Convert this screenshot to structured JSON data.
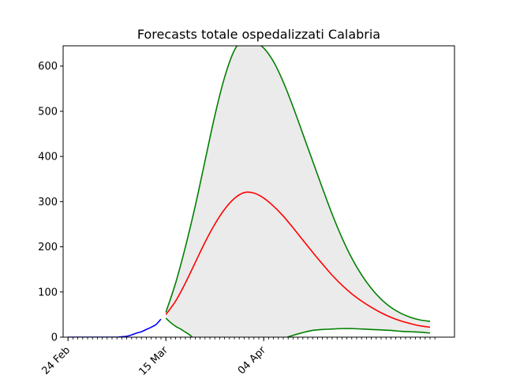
{
  "chart_data": {
    "type": "line",
    "title": "Forecasts totale ospedalizzati Calabria",
    "xlabel": "",
    "ylabel": "",
    "x_range": [
      "2020-02-23",
      "2020-05-13"
    ],
    "ylim": [
      0,
      645
    ],
    "grid": false,
    "x_tick_labels": [
      {
        "date": "2020-02-24",
        "label": "24 Feb"
      },
      {
        "date": "2020-03-15",
        "label": "15 Mar"
      },
      {
        "date": "2020-04-04",
        "label": "04 Apr"
      }
    ],
    "y_ticks": [
      0,
      100,
      200,
      300,
      400,
      500,
      600
    ],
    "minor_x_ticks": "daily",
    "series": [
      {
        "role": "observed",
        "color": "#0000ff",
        "points": [
          [
            "2020-02-24",
            0
          ],
          [
            "2020-02-26",
            0
          ],
          [
            "2020-02-28",
            0
          ],
          [
            "2020-03-01",
            0
          ],
          [
            "2020-03-03",
            0
          ],
          [
            "2020-03-05",
            0
          ],
          [
            "2020-03-06",
            1
          ],
          [
            "2020-03-07",
            2
          ],
          [
            "2020-03-08",
            5
          ],
          [
            "2020-03-09",
            9
          ],
          [
            "2020-03-10",
            12
          ],
          [
            "2020-03-11",
            17
          ],
          [
            "2020-03-12",
            22
          ],
          [
            "2020-03-13",
            28
          ],
          [
            "2020-03-14",
            40
          ]
        ]
      },
      {
        "role": "forecast-central",
        "color": "#ff0000",
        "points": [
          [
            "2020-03-15",
            50
          ],
          [
            "2020-03-17",
            80
          ],
          [
            "2020-03-19",
            120
          ],
          [
            "2020-03-21",
            165
          ],
          [
            "2020-03-23",
            210
          ],
          [
            "2020-03-25",
            250
          ],
          [
            "2020-03-27",
            283
          ],
          [
            "2020-03-29",
            307
          ],
          [
            "2020-03-31",
            320
          ],
          [
            "2020-04-02",
            319
          ],
          [
            "2020-04-04",
            308
          ],
          [
            "2020-04-06",
            290
          ],
          [
            "2020-04-08",
            268
          ],
          [
            "2020-04-10",
            242
          ],
          [
            "2020-04-12",
            215
          ],
          [
            "2020-04-14",
            188
          ],
          [
            "2020-04-16",
            162
          ],
          [
            "2020-04-18",
            137
          ],
          [
            "2020-04-20",
            115
          ],
          [
            "2020-04-22",
            96
          ],
          [
            "2020-04-24",
            80
          ],
          [
            "2020-04-26",
            66
          ],
          [
            "2020-04-28",
            54
          ],
          [
            "2020-04-30",
            44
          ],
          [
            "2020-05-02",
            36
          ],
          [
            "2020-05-04",
            30
          ],
          [
            "2020-05-06",
            25
          ],
          [
            "2020-05-08",
            22
          ]
        ]
      },
      {
        "role": "forecast-upper",
        "color": "#008000",
        "points": [
          [
            "2020-03-15",
            55
          ],
          [
            "2020-03-17",
            120
          ],
          [
            "2020-03-19",
            200
          ],
          [
            "2020-03-21",
            290
          ],
          [
            "2020-03-23",
            390
          ],
          [
            "2020-03-25",
            490
          ],
          [
            "2020-03-27",
            575
          ],
          [
            "2020-03-29",
            635
          ],
          [
            "2020-03-31",
            660
          ],
          [
            "2020-04-02",
            655
          ],
          [
            "2020-04-04",
            640
          ],
          [
            "2020-04-06",
            610
          ],
          [
            "2020-04-08",
            565
          ],
          [
            "2020-04-10",
            510
          ],
          [
            "2020-04-12",
            450
          ],
          [
            "2020-04-14",
            390
          ],
          [
            "2020-04-16",
            330
          ],
          [
            "2020-04-18",
            272
          ],
          [
            "2020-04-20",
            220
          ],
          [
            "2020-04-22",
            175
          ],
          [
            "2020-04-24",
            138
          ],
          [
            "2020-04-26",
            108
          ],
          [
            "2020-04-28",
            84
          ],
          [
            "2020-04-30",
            66
          ],
          [
            "2020-05-02",
            53
          ],
          [
            "2020-05-04",
            44
          ],
          [
            "2020-05-06",
            38
          ],
          [
            "2020-05-08",
            35
          ]
        ]
      },
      {
        "role": "forecast-lower",
        "color": "#008000",
        "points": [
          [
            "2020-03-15",
            42
          ],
          [
            "2020-03-16",
            32
          ],
          [
            "2020-03-17",
            24
          ],
          [
            "2020-03-18",
            18
          ],
          [
            "2020-03-19",
            11
          ],
          [
            "2020-03-20",
            4
          ],
          [
            "2020-03-21",
            -5
          ],
          [
            "2020-03-25",
            -30
          ],
          [
            "2020-03-31",
            -50
          ],
          [
            "2020-04-06",
            -30
          ],
          [
            "2020-04-08",
            -5
          ],
          [
            "2020-04-10",
            4
          ],
          [
            "2020-04-12",
            10
          ],
          [
            "2020-04-14",
            15
          ],
          [
            "2020-04-16",
            17
          ],
          [
            "2020-04-18",
            18
          ],
          [
            "2020-04-20",
            19
          ],
          [
            "2020-04-22",
            19
          ],
          [
            "2020-04-24",
            18
          ],
          [
            "2020-04-26",
            17
          ],
          [
            "2020-04-28",
            16
          ],
          [
            "2020-04-30",
            15
          ],
          [
            "2020-05-02",
            13
          ],
          [
            "2020-05-04",
            12
          ],
          [
            "2020-05-06",
            11
          ],
          [
            "2020-05-08",
            9
          ]
        ]
      }
    ],
    "band_color": "#ebebeb"
  }
}
